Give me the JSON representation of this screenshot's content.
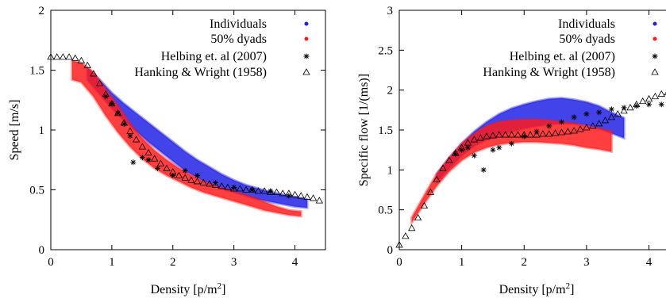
{
  "chart_data": [
    {
      "type": "scatter",
      "title": "",
      "xlabel": "Density [p/m",
      "xlabel_sup": "2",
      "xlabel_end": "]",
      "ylabel": "Speed [m/s]",
      "xlim": [
        0,
        4.5
      ],
      "ylim": [
        0,
        2
      ],
      "x_ticks": [
        "0",
        "1",
        "2",
        "3",
        "4"
      ],
      "y_ticks": [
        "0",
        "0.5",
        "1",
        "1.5",
        "2"
      ],
      "grid": false,
      "legend_position": "top-right",
      "series": [
        {
          "name": "Individuals",
          "kind": "band",
          "color": "#1f1fe6",
          "x": [
            0.6,
            0.8,
            1.0,
            1.2,
            1.4,
            1.6,
            1.8,
            2.0,
            2.2,
            2.4,
            2.6,
            2.8,
            3.0,
            3.2,
            3.4,
            3.6,
            3.8,
            4.0,
            4.2
          ],
          "upper": [
            1.52,
            1.42,
            1.31,
            1.22,
            1.14,
            1.06,
            0.98,
            0.9,
            0.82,
            0.75,
            0.69,
            0.63,
            0.58,
            0.54,
            0.51,
            0.48,
            0.46,
            0.44,
            0.42
          ],
          "lower": [
            1.42,
            1.3,
            1.18,
            1.08,
            0.99,
            0.9,
            0.82,
            0.74,
            0.66,
            0.6,
            0.55,
            0.51,
            0.48,
            0.45,
            0.42,
            0.4,
            0.38,
            0.36,
            0.35
          ]
        },
        {
          "name": "50% dyads",
          "kind": "band",
          "color": "#ff1a1a",
          "x": [
            0.35,
            0.5,
            0.7,
            0.9,
            1.1,
            1.3,
            1.5,
            1.7,
            1.9,
            2.1,
            2.3,
            2.5,
            2.7,
            2.9,
            3.1,
            3.3,
            3.5,
            3.7,
            3.9,
            4.1
          ],
          "upper": [
            1.58,
            1.56,
            1.48,
            1.34,
            1.2,
            1.05,
            0.93,
            0.83,
            0.75,
            0.68,
            0.62,
            0.57,
            0.53,
            0.5,
            0.47,
            0.44,
            0.4,
            0.36,
            0.33,
            0.32
          ],
          "lower": [
            1.42,
            1.4,
            1.28,
            1.12,
            0.98,
            0.86,
            0.76,
            0.68,
            0.62,
            0.57,
            0.52,
            0.48,
            0.45,
            0.42,
            0.39,
            0.36,
            0.33,
            0.31,
            0.29,
            0.28
          ]
        },
        {
          "name": "Helbing et. al (2007)",
          "kind": "points",
          "marker": "asterisk",
          "color": "#000000",
          "x": [
            0.9,
            1.0,
            1.1,
            1.2,
            1.3,
            1.35,
            1.5,
            1.6,
            1.75,
            2.0,
            2.2,
            2.4,
            2.7,
            3.0,
            3.3,
            3.6,
            3.9
          ],
          "y": [
            1.28,
            1.22,
            1.14,
            1.05,
            0.95,
            0.73,
            0.77,
            0.75,
            0.68,
            0.62,
            0.66,
            0.62,
            0.56,
            0.52,
            0.5,
            0.49,
            0.45
          ]
        },
        {
          "name": "Hanking & Wright (1958)",
          "kind": "points",
          "marker": "triangle",
          "color": "#000000",
          "x": [
            0.0,
            0.1,
            0.2,
            0.3,
            0.4,
            0.5,
            0.6,
            0.7,
            0.8,
            0.9,
            1.0,
            1.1,
            1.2,
            1.3,
            1.4,
            1.5,
            1.6,
            1.7,
            1.8,
            1.9,
            2.0,
            2.1,
            2.2,
            2.3,
            2.4,
            2.5,
            2.6,
            2.7,
            2.8,
            2.9,
            3.0,
            3.1,
            3.2,
            3.3,
            3.4,
            3.5,
            3.6,
            3.7,
            3.8,
            3.9,
            4.0,
            4.1,
            4.2,
            4.3,
            4.4
          ],
          "y": [
            1.61,
            1.61,
            1.61,
            1.61,
            1.6,
            1.58,
            1.54,
            1.47,
            1.39,
            1.3,
            1.22,
            1.14,
            1.06,
            0.99,
            0.92,
            0.86,
            0.81,
            0.76,
            0.72,
            0.68,
            0.65,
            0.62,
            0.6,
            0.58,
            0.57,
            0.56,
            0.55,
            0.54,
            0.53,
            0.52,
            0.51,
            0.51,
            0.5,
            0.5,
            0.49,
            0.49,
            0.48,
            0.48,
            0.47,
            0.47,
            0.46,
            0.45,
            0.44,
            0.43,
            0.41
          ]
        }
      ]
    },
    {
      "type": "scatter",
      "title": "",
      "xlabel": "Density [p/m",
      "xlabel_sup": "2",
      "xlabel_end": "]",
      "ylabel": "Specific flow [1/(ms)]",
      "xlim": [
        0,
        4.4
      ],
      "ylim": [
        0,
        3
      ],
      "x_ticks": [
        "0",
        "1",
        "2",
        "3",
        "4"
      ],
      "y_ticks": [
        "0",
        "0.5",
        "1",
        "1.5",
        "2",
        "2.5",
        "3"
      ],
      "grid": false,
      "legend_position": "top-right",
      "series": [
        {
          "name": "Individuals",
          "kind": "band",
          "color": "#1f1fe6",
          "x": [
            0.6,
            0.8,
            1.0,
            1.2,
            1.4,
            1.6,
            1.8,
            2.0,
            2.2,
            2.4,
            2.6,
            2.8,
            3.0,
            3.2,
            3.4,
            3.6
          ],
          "upper": [
            0.95,
            1.15,
            1.33,
            1.48,
            1.6,
            1.7,
            1.77,
            1.82,
            1.86,
            1.89,
            1.9,
            1.88,
            1.85,
            1.8,
            1.72,
            1.65
          ],
          "lower": [
            0.85,
            1.02,
            1.18,
            1.3,
            1.38,
            1.44,
            1.48,
            1.52,
            1.55,
            1.57,
            1.58,
            1.58,
            1.56,
            1.52,
            1.46,
            1.4
          ]
        },
        {
          "name": "50% dyads",
          "kind": "band",
          "color": "#ff1a1a",
          "x": [
            0.2,
            0.4,
            0.6,
            0.8,
            1.0,
            1.2,
            1.4,
            1.6,
            1.8,
            2.0,
            2.2,
            2.4,
            2.6,
            2.8,
            3.0,
            3.2,
            3.4
          ],
          "upper": [
            0.4,
            0.68,
            0.95,
            1.15,
            1.33,
            1.45,
            1.55,
            1.6,
            1.62,
            1.63,
            1.63,
            1.62,
            1.6,
            1.58,
            1.55,
            1.52,
            1.48
          ],
          "lower": [
            0.34,
            0.58,
            0.8,
            0.98,
            1.12,
            1.22,
            1.28,
            1.32,
            1.34,
            1.35,
            1.35,
            1.34,
            1.33,
            1.31,
            1.28,
            1.26,
            1.23
          ]
        },
        {
          "name": "Helbing et. al (2007)",
          "kind": "points",
          "marker": "asterisk",
          "color": "#000000",
          "x": [
            0.9,
            1.0,
            1.1,
            1.2,
            1.35,
            1.5,
            1.6,
            1.8,
            2.0,
            2.2,
            2.4,
            2.6,
            2.8,
            3.0,
            3.2,
            3.4,
            3.6,
            3.8,
            4.0,
            4.2,
            4.4
          ],
          "y": [
            1.2,
            1.25,
            1.28,
            1.18,
            1.0,
            1.25,
            1.28,
            1.33,
            1.42,
            1.48,
            1.55,
            1.6,
            1.66,
            1.7,
            1.72,
            1.76,
            1.78,
            1.8,
            1.82,
            1.82,
            1.78
          ]
        },
        {
          "name": "Hanking & Wright (1958)",
          "kind": "points",
          "marker": "triangle",
          "color": "#000000",
          "x": [
            0.0,
            0.1,
            0.2,
            0.3,
            0.4,
            0.5,
            0.6,
            0.7,
            0.8,
            0.9,
            1.0,
            1.1,
            1.2,
            1.3,
            1.4,
            1.5,
            1.6,
            1.7,
            1.8,
            1.9,
            2.0,
            2.1,
            2.2,
            2.3,
            2.4,
            2.5,
            2.6,
            2.7,
            2.8,
            2.9,
            3.0,
            3.1,
            3.2,
            3.3,
            3.4,
            3.5,
            3.6,
            3.7,
            3.8,
            3.9,
            4.0,
            4.1,
            4.2,
            4.3,
            4.4
          ],
          "y": [
            0.06,
            0.17,
            0.27,
            0.4,
            0.55,
            0.72,
            0.88,
            1.02,
            1.12,
            1.21,
            1.28,
            1.34,
            1.38,
            1.4,
            1.42,
            1.43,
            1.44,
            1.44,
            1.44,
            1.44,
            1.44,
            1.44,
            1.44,
            1.45,
            1.45,
            1.46,
            1.47,
            1.48,
            1.49,
            1.51,
            1.53,
            1.55,
            1.58,
            1.62,
            1.66,
            1.7,
            1.74,
            1.78,
            1.82,
            1.86,
            1.89,
            1.92,
            1.95,
            1.97,
            1.99
          ]
        }
      ]
    }
  ]
}
